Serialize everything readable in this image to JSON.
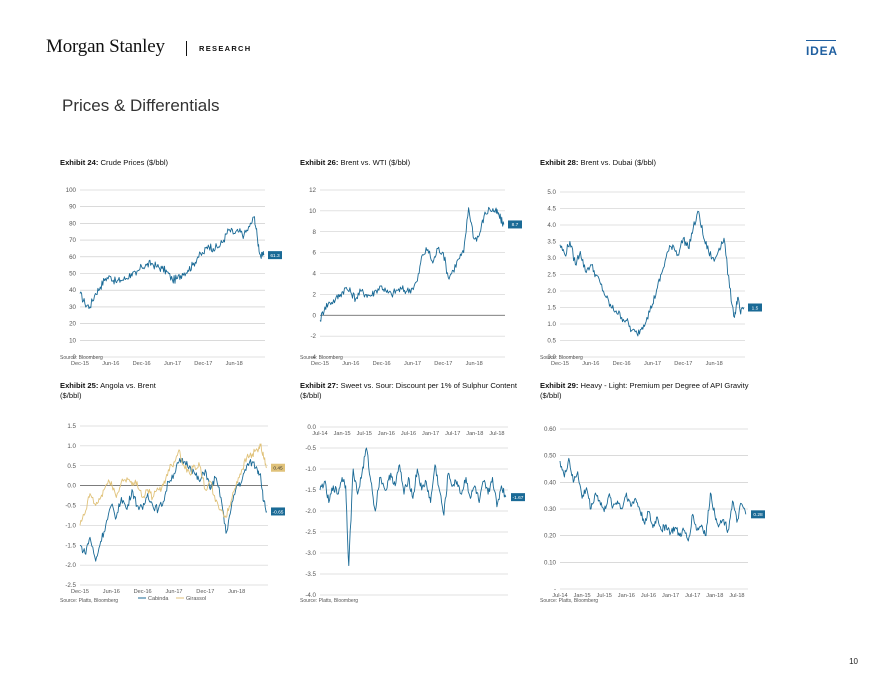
{
  "header": {
    "logo": "Morgan Stanley",
    "section": "RESEARCH",
    "tag": "IDEA"
  },
  "page_title": "Prices & Differentials",
  "page_number": "10",
  "colors": {
    "blue": "#1a6a96",
    "gold": "#e0c27a",
    "grid": "#c4c4c4",
    "label_box": "#1a6a96"
  },
  "chart_data": [
    {
      "id": "ex24",
      "exhibit": "Exhibit 24:",
      "title": "Crude Prices ($/bbl)",
      "type": "line",
      "source": "Source: Bloomberg",
      "ylim": [
        0,
        100
      ],
      "yticks": [
        0,
        10,
        20,
        30,
        40,
        50,
        60,
        70,
        80,
        90,
        100
      ],
      "ytick_labels": [
        "0",
        "10",
        "20",
        "30",
        "40",
        "50",
        "60",
        "70",
        "80",
        "90",
        "100"
      ],
      "xlim": [
        2015.92,
        2018.92
      ],
      "xtick_pos": [
        2015.92,
        2016.42,
        2016.92,
        2017.42,
        2017.92,
        2018.42
      ],
      "xtick_labels": [
        "Dec-15",
        "Jun-16",
        "Dec-16",
        "Jun-17",
        "Dec-17",
        "Jun-18"
      ],
      "xaxis_top": false,
      "end_label": "61.3",
      "series": [
        {
          "color": "#1a6a96",
          "x": [
            2015.92,
            2016.0,
            2016.08,
            2016.17,
            2016.25,
            2016.33,
            2016.42,
            2016.5,
            2016.58,
            2016.67,
            2016.75,
            2016.83,
            2016.92,
            2017.0,
            2017.08,
            2017.17,
            2017.25,
            2017.33,
            2017.42,
            2017.5,
            2017.58,
            2017.67,
            2017.75,
            2017.83,
            2017.92,
            2018.0,
            2018.08,
            2018.17,
            2018.25,
            2018.33,
            2018.42,
            2018.5,
            2018.58,
            2018.67,
            2018.75,
            2018.8,
            2018.85,
            2018.9
          ],
          "y": [
            38,
            32,
            30,
            38,
            42,
            47,
            48,
            45,
            46,
            47,
            50,
            49,
            54,
            55,
            56,
            54,
            53,
            51,
            46,
            47,
            50,
            52,
            55,
            60,
            62,
            67,
            65,
            66,
            70,
            76,
            74,
            75,
            73,
            78,
            84,
            70,
            60,
            61
          ]
        }
      ]
    },
    {
      "id": "ex26",
      "exhibit": "Exhibit 26:",
      "title": "Brent vs. WTI ($/bbl)",
      "type": "line",
      "source": "Source: Bloomberg",
      "ylim": [
        -4,
        12
      ],
      "yticks": [
        -4,
        -2,
        0,
        2,
        4,
        6,
        8,
        10,
        12
      ],
      "ytick_labels": [
        "-4",
        "-2",
        "0",
        "2",
        "4",
        "6",
        "8",
        "10",
        "12"
      ],
      "xlim": [
        2015.92,
        2018.92
      ],
      "xtick_pos": [
        2015.92,
        2016.42,
        2016.92,
        2017.42,
        2017.92,
        2018.42
      ],
      "xtick_labels": [
        "Dec-15",
        "Jun-16",
        "Dec-16",
        "Jun-17",
        "Dec-17",
        "Jun-18"
      ],
      "xaxis_top": false,
      "end_label": "8.7",
      "series": [
        {
          "color": "#1a6a96",
          "x": [
            2015.92,
            2016.0,
            2016.08,
            2016.17,
            2016.25,
            2016.33,
            2016.42,
            2016.5,
            2016.58,
            2016.67,
            2016.75,
            2016.83,
            2016.92,
            2017.0,
            2017.08,
            2017.17,
            2017.25,
            2017.33,
            2017.42,
            2017.5,
            2017.58,
            2017.67,
            2017.75,
            2017.83,
            2017.92,
            2018.0,
            2018.08,
            2018.17,
            2018.25,
            2018.33,
            2018.42,
            2018.5,
            2018.58,
            2018.67,
            2018.75,
            2018.8,
            2018.85,
            2018.9
          ],
          "y": [
            -0.5,
            0.8,
            1.2,
            1.5,
            2.0,
            2.6,
            2.2,
            1.6,
            2.3,
            2.0,
            1.9,
            2.4,
            2.8,
            2.2,
            2.0,
            2.4,
            2.5,
            2.3,
            2.6,
            3.3,
            5.8,
            6.3,
            5.0,
            6.4,
            6.0,
            3.6,
            4.3,
            5.4,
            6.0,
            10.3,
            7.3,
            7.6,
            9.5,
            10.2,
            10.0,
            9.8,
            9.2,
            8.7
          ]
        }
      ]
    },
    {
      "id": "ex28",
      "exhibit": "Exhibit 28:",
      "title": "Brent vs. Dubai ($/bbl)",
      "type": "line",
      "source": "Source: Bloomberg",
      "ylim": [
        0,
        5
      ],
      "yticks": [
        0,
        0.5,
        1,
        1.5,
        2,
        2.5,
        3,
        3.5,
        4,
        4.5,
        5
      ],
      "ytick_labels": [
        "0.0",
        "0.5",
        "1.0",
        "1.5",
        "2.0",
        "2.5",
        "3.0",
        "3.5",
        "4.0",
        "4.5",
        "5.0"
      ],
      "xlim": [
        2015.92,
        2018.92
      ],
      "xtick_pos": [
        2015.92,
        2016.42,
        2016.92,
        2017.42,
        2017.92,
        2018.42
      ],
      "xtick_labels": [
        "Dec-15",
        "Jun-16",
        "Dec-16",
        "Jun-17",
        "Dec-17",
        "Jun-18"
      ],
      "xaxis_top": false,
      "end_label": "1.5",
      "series": [
        {
          "color": "#1a6a96",
          "x": [
            2015.92,
            2016.0,
            2016.08,
            2016.17,
            2016.25,
            2016.33,
            2016.42,
            2016.5,
            2016.58,
            2016.67,
            2016.75,
            2016.83,
            2016.92,
            2017.0,
            2017.08,
            2017.17,
            2017.25,
            2017.33,
            2017.42,
            2017.5,
            2017.58,
            2017.67,
            2017.75,
            2017.83,
            2017.92,
            2018.0,
            2018.08,
            2018.17,
            2018.25,
            2018.33,
            2018.42,
            2018.5,
            2018.58,
            2018.67,
            2018.75,
            2018.8,
            2018.85,
            2018.9
          ],
          "y": [
            3.4,
            3.1,
            3.5,
            2.8,
            3.2,
            2.6,
            2.8,
            2.5,
            2.2,
            1.8,
            1.5,
            1.4,
            1.2,
            1.1,
            0.8,
            0.7,
            0.9,
            1.2,
            1.6,
            2.1,
            2.6,
            3.2,
            3.4,
            3.1,
            3.6,
            3.3,
            3.9,
            4.4,
            3.6,
            3.2,
            2.9,
            3.3,
            3.6,
            2.1,
            1.2,
            1.8,
            1.3,
            1.5
          ]
        }
      ]
    },
    {
      "id": "ex25",
      "exhibit": "Exhibit 25:",
      "title": "Angola vs. Brent",
      "title2": "($/bbl)",
      "type": "line",
      "source": "Source: Platts, Bloomberg",
      "ylim": [
        -2.5,
        1.5
      ],
      "yticks": [
        -2.5,
        -2,
        -1.5,
        -1,
        -0.5,
        0,
        0.5,
        1,
        1.5
      ],
      "ytick_labels": [
        "-2.5",
        "-2.0",
        "-1.5",
        "-1.0",
        "-0.5",
        "0.0",
        "0.5",
        "1.0",
        "1.5"
      ],
      "xlim": [
        2015.92,
        2018.92
      ],
      "xtick_pos": [
        2015.92,
        2016.42,
        2016.92,
        2017.42,
        2017.92,
        2018.42
      ],
      "xtick_labels": [
        "Dec-15",
        "Jun-16",
        "Dec-16",
        "Jun-17",
        "Dec-17",
        "Jun-18"
      ],
      "xaxis_top": false,
      "end_labels": [
        "0.45",
        "-0.65"
      ],
      "legend": [
        "Cabinda",
        "Girassol"
      ],
      "series": [
        {
          "name": "Cabinda",
          "color": "#1a6a96",
          "x": [
            2015.92,
            2016.0,
            2016.08,
            2016.17,
            2016.25,
            2016.33,
            2016.42,
            2016.5,
            2016.58,
            2016.67,
            2016.75,
            2016.83,
            2016.92,
            2017.0,
            2017.08,
            2017.17,
            2017.25,
            2017.33,
            2017.42,
            2017.5,
            2017.58,
            2017.67,
            2017.75,
            2017.83,
            2017.92,
            2018.0,
            2018.08,
            2018.17,
            2018.25,
            2018.33,
            2018.42,
            2018.5,
            2018.58,
            2018.67,
            2018.75,
            2018.8,
            2018.85,
            2018.9
          ],
          "y": [
            -1.5,
            -1.7,
            -1.3,
            -1.9,
            -1.4,
            -1.0,
            -0.5,
            -0.8,
            -0.3,
            -0.6,
            -0.1,
            -0.5,
            -0.6,
            -0.2,
            -0.5,
            -0.6,
            -0.4,
            0.1,
            0.3,
            0.6,
            0.6,
            0.5,
            0.3,
            0.1,
            0.4,
            -0.1,
            0.2,
            -0.3,
            -1.2,
            -0.6,
            0.0,
            0.1,
            0.5,
            0.6,
            0.4,
            0.3,
            -0.4,
            -0.65
          ]
        },
        {
          "name": "Girassol",
          "color": "#e0c27a",
          "x": [
            2015.92,
            2016.0,
            2016.08,
            2016.17,
            2016.25,
            2016.33,
            2016.42,
            2016.5,
            2016.58,
            2016.67,
            2016.75,
            2016.83,
            2016.92,
            2017.0,
            2017.08,
            2017.17,
            2017.25,
            2017.33,
            2017.42,
            2017.5,
            2017.58,
            2017.67,
            2017.75,
            2017.83,
            2017.92,
            2018.0,
            2018.08,
            2018.17,
            2018.25,
            2018.33,
            2018.42,
            2018.5,
            2018.58,
            2018.67,
            2018.75,
            2018.8,
            2018.85,
            2018.9
          ],
          "y": [
            -1.0,
            -0.7,
            -0.2,
            -0.5,
            -0.3,
            0.0,
            0.1,
            -0.3,
            0.1,
            0.2,
            0.0,
            0.1,
            -0.3,
            -0.1,
            -0.3,
            -0.1,
            0.0,
            0.4,
            0.6,
            0.9,
            0.5,
            0.3,
            0.5,
            0.5,
            -0.1,
            0.1,
            -0.4,
            -0.6,
            -0.8,
            -0.4,
            0.1,
            0.4,
            0.7,
            0.8,
            0.9,
            1.0,
            0.7,
            0.45
          ]
        }
      ]
    },
    {
      "id": "ex27",
      "exhibit": "Exhibit 27:",
      "title": "Sweet vs. Sour: Discount per 1% of Sulphur Content",
      "title2": "($/bbl)",
      "type": "line",
      "source": "Source: Platts, Bloomberg",
      "ylim": [
        -4,
        0
      ],
      "yticks": [
        -4,
        -3.5,
        -3,
        -2.5,
        -2,
        -1.5,
        -1,
        -0.5,
        0
      ],
      "ytick_labels": [
        "-4.0",
        "-3.5",
        "-3.0",
        "-2.5",
        "-2.0",
        "-1.5",
        "-1.0",
        "-0.5",
        "0.0"
      ],
      "xlim": [
        2014.5,
        2018.75
      ],
      "xtick_pos": [
        2014.5,
        2015.0,
        2015.5,
        2016.0,
        2016.5,
        2017.0,
        2017.5,
        2018.0,
        2018.5
      ],
      "xtick_labels": [
        "Jul-14",
        "Jan-15",
        "Jul-15",
        "Jan-16",
        "Jul-16",
        "Jan-17",
        "Jul-17",
        "Jan-18",
        "Jul-18"
      ],
      "xaxis_top": true,
      "end_label": "-1.67",
      "series": [
        {
          "color": "#1a6a96",
          "x": [
            2014.5,
            2014.6,
            2014.7,
            2014.8,
            2014.9,
            2015.0,
            2015.08,
            2015.15,
            2015.25,
            2015.35,
            2015.45,
            2015.55,
            2015.65,
            2015.75,
            2015.85,
            2016.0,
            2016.1,
            2016.2,
            2016.3,
            2016.4,
            2016.5,
            2016.6,
            2016.7,
            2016.8,
            2016.9,
            2017.0,
            2017.1,
            2017.2,
            2017.3,
            2017.4,
            2017.5,
            2017.6,
            2017.7,
            2017.8,
            2017.9,
            2018.0,
            2018.1,
            2018.2,
            2018.3,
            2018.4,
            2018.5,
            2018.6,
            2018.7
          ],
          "y": [
            -1.5,
            -1.3,
            -1.8,
            -1.4,
            -1.6,
            -1.2,
            -1.4,
            -3.3,
            -1.0,
            -1.6,
            -1.1,
            -0.5,
            -1.3,
            -2.0,
            -1.2,
            -1.5,
            -1.1,
            -1.4,
            -0.9,
            -1.6,
            -1.2,
            -1.7,
            -1.0,
            -1.5,
            -1.3,
            -1.8,
            -0.9,
            -1.5,
            -2.1,
            -1.1,
            -1.4,
            -1.3,
            -1.6,
            -1.2,
            -1.7,
            -1.4,
            -1.8,
            -1.3,
            -1.6,
            -1.2,
            -1.9,
            -1.4,
            -1.67
          ]
        }
      ]
    },
    {
      "id": "ex29",
      "exhibit": "Exhibit 29:",
      "title": "Heavy - Light: Premium per Degree of API Gravity",
      "title2": "($/bbl)",
      "type": "line",
      "source": "Source: Platts, Bloomberg",
      "ylim": [
        0,
        0.6
      ],
      "yticks": [
        0,
        0.1,
        0.2,
        0.3,
        0.4,
        0.5,
        0.6
      ],
      "ytick_labels": [
        "-",
        "0.10",
        "0.20",
        "0.30",
        "0.40",
        "0.50",
        "0.60"
      ],
      "xlim": [
        2014.5,
        2018.75
      ],
      "xtick_pos": [
        2014.5,
        2015.0,
        2015.5,
        2016.0,
        2016.5,
        2017.0,
        2017.5,
        2018.0,
        2018.5
      ],
      "xtick_labels": [
        "Jul-14",
        "Jan-15",
        "Jul-15",
        "Jan-16",
        "Jul-16",
        "Jan-17",
        "Jul-17",
        "Jan-18",
        "Jul-18"
      ],
      "xaxis_top": false,
      "end_label": "0.28",
      "series": [
        {
          "color": "#1a6a96",
          "x": [
            2014.5,
            2014.6,
            2014.7,
            2014.8,
            2014.9,
            2015.0,
            2015.1,
            2015.2,
            2015.3,
            2015.4,
            2015.5,
            2015.6,
            2015.7,
            2015.8,
            2015.9,
            2016.0,
            2016.1,
            2016.2,
            2016.3,
            2016.4,
            2016.5,
            2016.6,
            2016.7,
            2016.8,
            2016.9,
            2017.0,
            2017.1,
            2017.2,
            2017.3,
            2017.4,
            2017.5,
            2017.6,
            2017.7,
            2017.8,
            2017.9,
            2018.0,
            2018.1,
            2018.2,
            2018.3,
            2018.4,
            2018.5,
            2018.6,
            2018.7
          ],
          "y": [
            0.48,
            0.42,
            0.49,
            0.4,
            0.44,
            0.34,
            0.38,
            0.3,
            0.36,
            0.33,
            0.29,
            0.35,
            0.31,
            0.33,
            0.3,
            0.36,
            0.31,
            0.34,
            0.3,
            0.25,
            0.29,
            0.23,
            0.27,
            0.22,
            0.24,
            0.21,
            0.23,
            0.2,
            0.22,
            0.18,
            0.28,
            0.22,
            0.24,
            0.2,
            0.36,
            0.28,
            0.24,
            0.26,
            0.22,
            0.33,
            0.25,
            0.32,
            0.28
          ]
        }
      ]
    }
  ]
}
